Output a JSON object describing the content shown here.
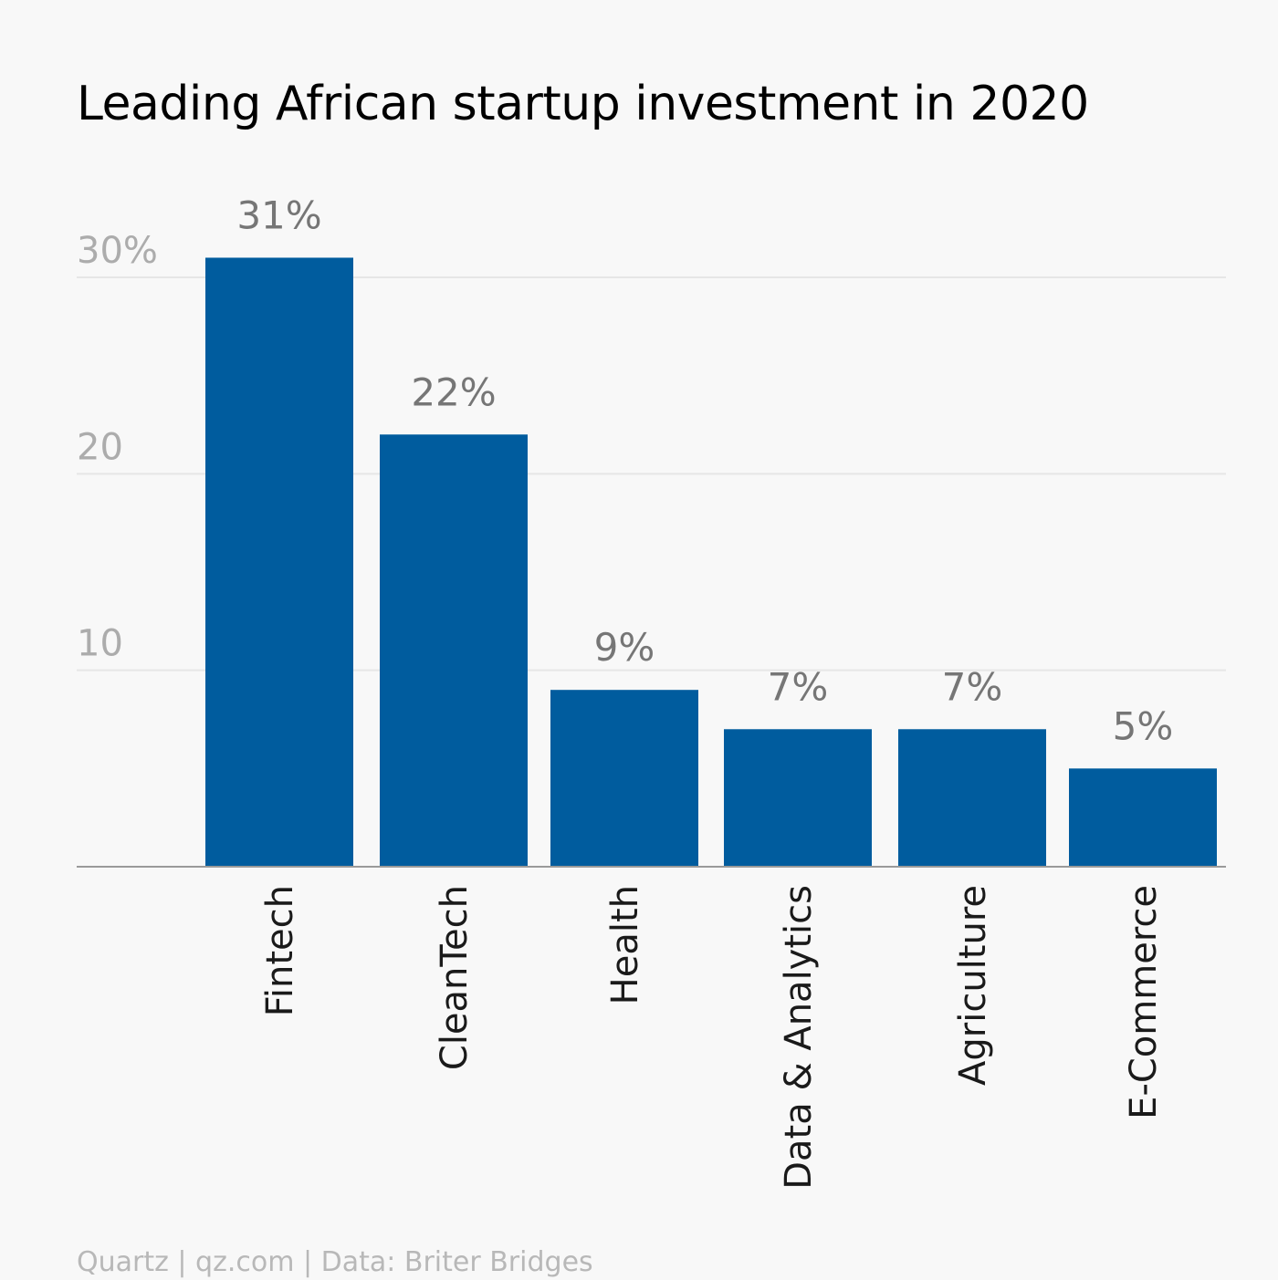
{
  "chart_data": {
    "type": "bar",
    "title": "Leading African startup investment in 2020",
    "categories": [
      "Fintech",
      "CleanTech",
      "Health",
      "Data & Analytics",
      "Agriculture",
      "E-Commerce"
    ],
    "values": [
      31,
      22,
      9,
      7,
      7,
      5
    ],
    "data_labels": [
      "31%",
      "22%",
      "9%",
      "7%",
      "7%",
      "5%"
    ],
    "y_ticks": [
      {
        "value": 10,
        "label": "10"
      },
      {
        "value": 20,
        "label": "20"
      },
      {
        "value": 30,
        "label": "30%"
      }
    ],
    "ylim": [
      0,
      31
    ],
    "xlabel": "",
    "ylabel": "",
    "grid": true,
    "bar_color": "#005c9e",
    "source": "Quartz | qz.com | Data: Briter Bridges"
  }
}
